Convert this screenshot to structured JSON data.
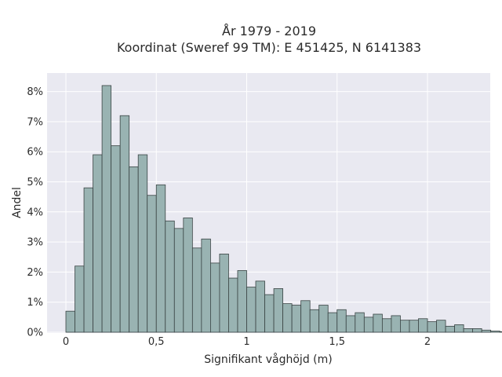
{
  "chart_data": {
    "type": "bar",
    "title_line1": "År 1979 - 2019",
    "title_line2": "Koordinat (Sweref 99 TM): E 451425, N 6141383",
    "xlabel": "Signifikant våghöjd (m)",
    "ylabel": "Andel",
    "xlim": [
      -0.1,
      2.35
    ],
    "ylim": [
      0,
      8.2
    ],
    "x_ticks": [
      {
        "value": 0,
        "label": "0"
      },
      {
        "value": 0.5,
        "label": "0,5"
      },
      {
        "value": 1,
        "label": "1"
      },
      {
        "value": 1.5,
        "label": "1,5"
      },
      {
        "value": 2,
        "label": "2"
      }
    ],
    "y_ticks": [
      {
        "value": 0,
        "label": "0%"
      },
      {
        "value": 1,
        "label": "1%"
      },
      {
        "value": 2,
        "label": "2%"
      },
      {
        "value": 3,
        "label": "3%"
      },
      {
        "value": 4,
        "label": "4%"
      },
      {
        "value": 5,
        "label": "5%"
      },
      {
        "value": 6,
        "label": "6%"
      },
      {
        "value": 7,
        "label": "7%"
      },
      {
        "value": 8,
        "label": "8%"
      }
    ],
    "bin_start": 0.0,
    "bin_width": 0.05,
    "values": [
      0.7,
      2.2,
      4.8,
      5.9,
      8.2,
      6.2,
      7.2,
      5.5,
      5.9,
      4.55,
      4.9,
      3.7,
      3.45,
      3.8,
      2.8,
      3.1,
      2.3,
      2.6,
      1.8,
      2.05,
      1.5,
      1.7,
      1.25,
      1.45,
      0.95,
      0.9,
      1.05,
      0.75,
      0.9,
      0.65,
      0.75,
      0.55,
      0.65,
      0.5,
      0.6,
      0.45,
      0.55,
      0.4,
      0.4,
      0.45,
      0.35,
      0.4,
      0.2,
      0.25,
      0.12,
      0.12,
      0.07,
      0.04,
      0.02
    ]
  },
  "colors": {
    "plot_background": "#e9e9f1",
    "bar_fill": "#99b3b2",
    "bar_edge": "#3a4444",
    "grid": "#ffffff"
  }
}
